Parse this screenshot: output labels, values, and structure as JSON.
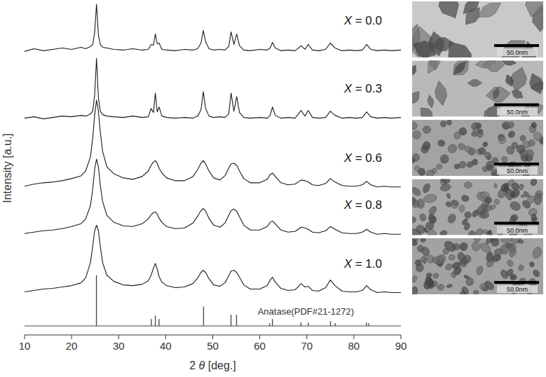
{
  "chart_data": {
    "type": "line",
    "x_label": "2 θ [deg.]",
    "y_label": "Intensity [a.u.]",
    "x": [
      10,
      12,
      14,
      16,
      18,
      20,
      22,
      23,
      24,
      24.5,
      24.9,
      25.3,
      25.7,
      26.1,
      26.6,
      27.5,
      29,
      31,
      33,
      35,
      36.3,
      36.9,
      37.4,
      37.8,
      38.2,
      38.6,
      39.2,
      40.2,
      42,
      44,
      45.8,
      46.8,
      47.5,
      48,
      48.5,
      49.2,
      50.2,
      51.5,
      52.6,
      53.4,
      53.9,
      54.5,
      55.1,
      55.7,
      56.6,
      58,
      60,
      61.6,
      62.2,
      62.7,
      63.3,
      64.5,
      66,
      67.5,
      68.8,
      69.6,
      70.3,
      71.2,
      72.5,
      74,
      75,
      76,
      77.5,
      79,
      80.5,
      81.8,
      82.7,
      83.6,
      85,
      86.5,
      88,
      90
    ],
    "xlim": [
      10,
      90
    ],
    "xticks": [
      10,
      20,
      30,
      40,
      50,
      60,
      70,
      80,
      90
    ],
    "ylim": [
      0,
      480
    ],
    "tick_labels": "x",
    "grid": false,
    "series": [
      {
        "name": "X = 0.0",
        "color": "#1a1a1a",
        "values": [
          408,
          412,
          409,
          411,
          413,
          411,
          414,
          412,
          415,
          418,
          435,
          476,
          432,
          418,
          414,
          413,
          411,
          410,
          412,
          410,
          411,
          418,
          417,
          433,
          419,
          420,
          411,
          410,
          409,
          411,
          410,
          412,
          420,
          438,
          422,
          412,
          410,
          411,
          410,
          415,
          436,
          418,
          433,
          416,
          410,
          409,
          411,
          410,
          413,
          421,
          413,
          409,
          410,
          409,
          416,
          411,
          418,
          410,
          409,
          411,
          420,
          413,
          409,
          410,
          409,
          410,
          418,
          411,
          409,
          410,
          409,
          410
        ]
      },
      {
        "name": "X = 0.3",
        "color": "#1a1a1a",
        "values": [
          312,
          314,
          311,
          313,
          315,
          314,
          316,
          315,
          318,
          322,
          345,
          398,
          342,
          322,
          317,
          315,
          314,
          313,
          315,
          313,
          314,
          326,
          320,
          348,
          321,
          328,
          315,
          313,
          312,
          313,
          312,
          315,
          324,
          350,
          326,
          315,
          313,
          314,
          313,
          318,
          348,
          322,
          343,
          320,
          313,
          312,
          313,
          312,
          316,
          328,
          316,
          312,
          313,
          312,
          323,
          315,
          323,
          313,
          312,
          313,
          322,
          316,
          312,
          313,
          312,
          313,
          321,
          314,
          312,
          313,
          312,
          313
        ]
      },
      {
        "name": "X = 0.6",
        "color": "#1a1a1a",
        "values": [
          214,
          217,
          219,
          220,
          222,
          225,
          229,
          236,
          256,
          284,
          316,
          338,
          322,
          292,
          264,
          242,
          232,
          226,
          224,
          228,
          236,
          244,
          249,
          251,
          247,
          240,
          233,
          226,
          222,
          222,
          228,
          238,
          247,
          251,
          246,
          236,
          226,
          223,
          229,
          240,
          246,
          247,
          244,
          236,
          225,
          219,
          219,
          224,
          231,
          233,
          228,
          219,
          216,
          217,
          223,
          222,
          220,
          216,
          215,
          218,
          225,
          220,
          215,
          214,
          214,
          216,
          221,
          216,
          213,
          214,
          213,
          213
        ]
      },
      {
        "name": "X = 0.8",
        "color": "#1a1a1a",
        "values": [
          146,
          148,
          150,
          151,
          153,
          156,
          160,
          167,
          186,
          210,
          238,
          253,
          242,
          216,
          192,
          172,
          162,
          157,
          156,
          160,
          167,
          173,
          176,
          177,
          174,
          168,
          162,
          156,
          153,
          154,
          161,
          171,
          179,
          182,
          178,
          168,
          158,
          155,
          161,
          172,
          179,
          181,
          178,
          170,
          158,
          151,
          151,
          156,
          162,
          164,
          160,
          151,
          148,
          149,
          155,
          154,
          152,
          148,
          147,
          150,
          156,
          152,
          147,
          146,
          146,
          148,
          152,
          148,
          145,
          146,
          145,
          145
        ]
      },
      {
        "name": "X = 1.0",
        "color": "#1a1a1a",
        "values": [
          62,
          64,
          66,
          67,
          69,
          71,
          75,
          82,
          104,
          128,
          150,
          158,
          150,
          128,
          104,
          86,
          77,
          72,
          71,
          73,
          78,
          86,
          96,
          103,
          95,
          84,
          76,
          71,
          68,
          69,
          74,
          82,
          90,
          93,
          90,
          81,
          72,
          70,
          75,
          85,
          92,
          93,
          90,
          83,
          72,
          66,
          66,
          71,
          79,
          83,
          76,
          67,
          64,
          65,
          74,
          69,
          70,
          64,
          63,
          68,
          79,
          71,
          63,
          62,
          62,
          64,
          71,
          65,
          61,
          62,
          61,
          61
        ]
      },
      {
        "name": "Anatase(PDF#21-1272)",
        "type": "stick",
        "color": "#444444",
        "x": [
          25.28,
          36.95,
          37.8,
          38.58,
          48.05,
          53.89,
          55.06,
          62.12,
          62.69,
          68.76,
          70.31,
          75.03,
          76.02,
          82.66,
          83.15
        ],
        "values": [
          86,
          23,
          28,
          23,
          41,
          29,
          29,
          17,
          23,
          18,
          18,
          20,
          17,
          18,
          17
        ],
        "baseline": 13
      }
    ],
    "scale_bars": [
      "50.0nm",
      "50.0nm",
      "50.0nm",
      "50.0nm",
      "50.0nm"
    ]
  }
}
